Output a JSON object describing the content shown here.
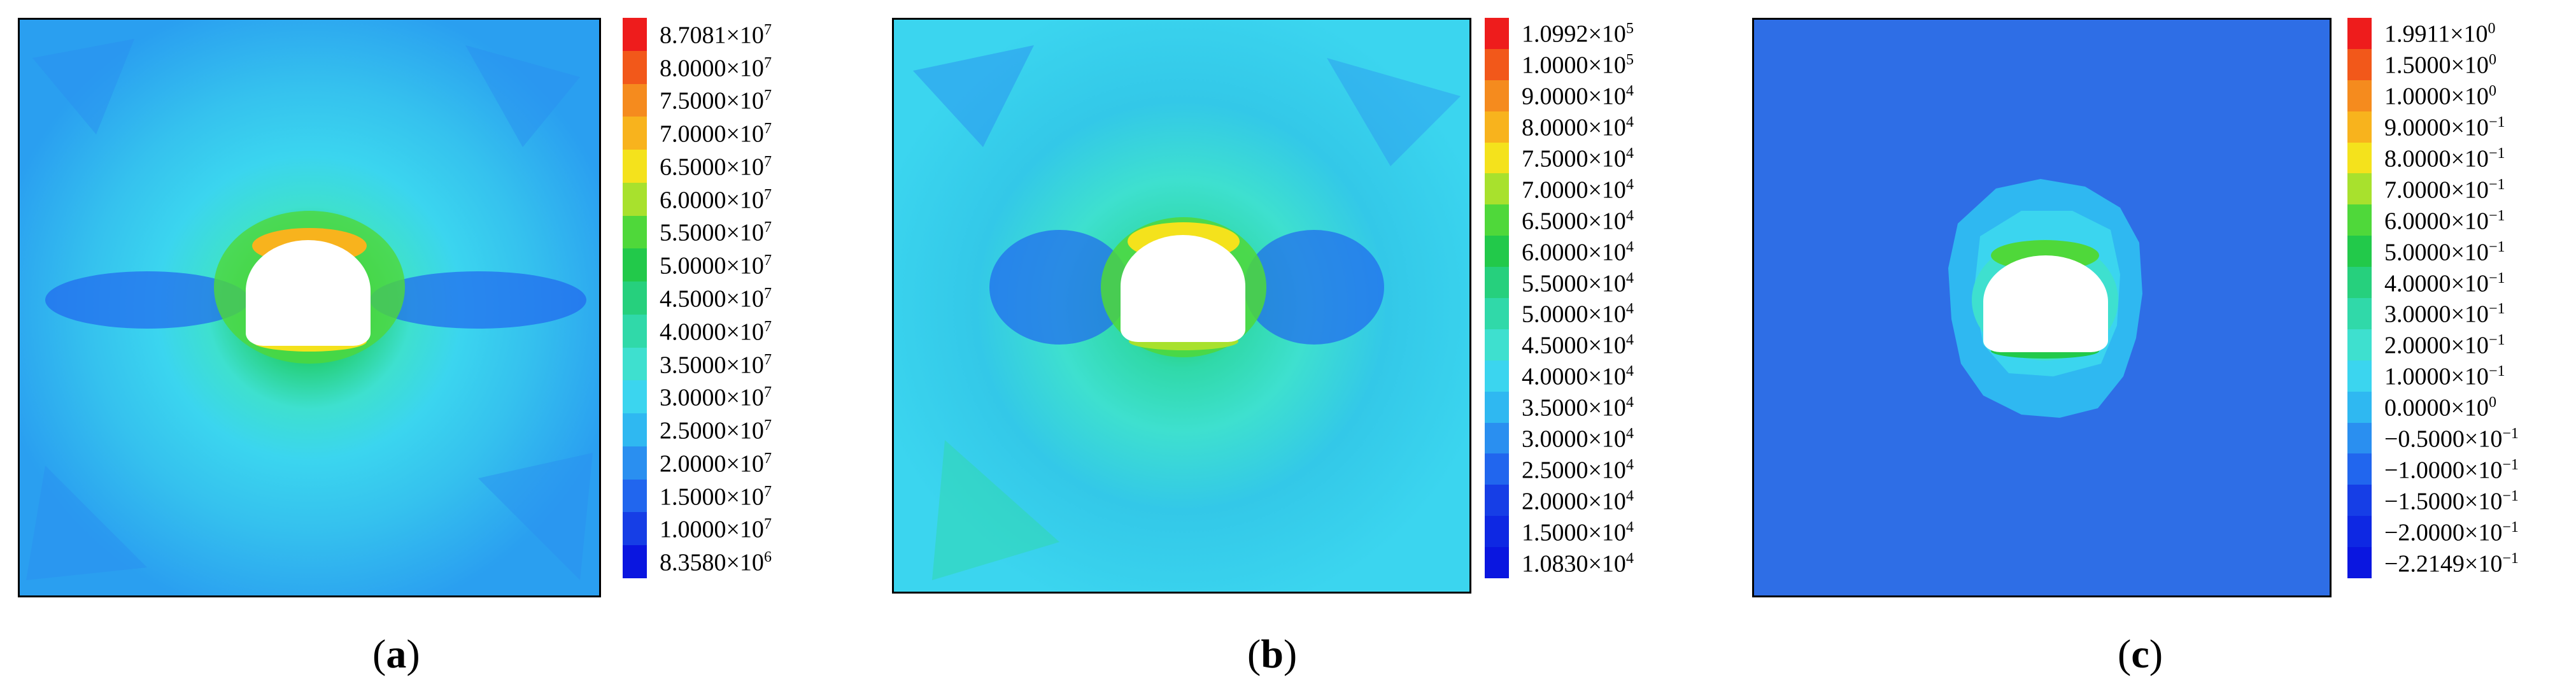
{
  "panels": [
    {
      "id": "a",
      "caption": "a",
      "background": "#35c1ee",
      "legend": [
        {
          "mantissa": "8.7081",
          "exp": "7",
          "color": "#ee1c1c"
        },
        {
          "mantissa": "8.0000",
          "exp": "7",
          "color": "#f2581a"
        },
        {
          "mantissa": "7.5000",
          "exp": "7",
          "color": "#f58b1e"
        },
        {
          "mantissa": "7.0000",
          "exp": "7",
          "color": "#f8b31d"
        },
        {
          "mantissa": "6.5000",
          "exp": "7",
          "color": "#f4e21c"
        },
        {
          "mantissa": "6.0000",
          "exp": "7",
          "color": "#a8e12d"
        },
        {
          "mantissa": "5.5000",
          "exp": "7",
          "color": "#4fd83a"
        },
        {
          "mantissa": "5.0000",
          "exp": "7",
          "color": "#22c94a"
        },
        {
          "mantissa": "4.5000",
          "exp": "7",
          "color": "#26d07d"
        },
        {
          "mantissa": "4.0000",
          "exp": "7",
          "color": "#30d9a9"
        },
        {
          "mantissa": "3.5000",
          "exp": "7",
          "color": "#3ee0cf"
        },
        {
          "mantissa": "3.0000",
          "exp": "7",
          "color": "#3bd5ef"
        },
        {
          "mantissa": "2.5000",
          "exp": "7",
          "color": "#2fb8f1"
        },
        {
          "mantissa": "2.0000",
          "exp": "7",
          "color": "#2a8ff0"
        },
        {
          "mantissa": "1.5000",
          "exp": "7",
          "color": "#2166ee"
        },
        {
          "mantissa": "1.0000",
          "exp": "7",
          "color": "#163ee6"
        },
        {
          "mantissa": "8.3580",
          "exp": "6",
          "color": "#0a16e0"
        }
      ]
    },
    {
      "id": "b",
      "caption": "b",
      "background": "#33c8e8",
      "legend": [
        {
          "mantissa": "1.0992",
          "exp": "5",
          "color": "#ee1c1c"
        },
        {
          "mantissa": "1.0000",
          "exp": "5",
          "color": "#f2581a"
        },
        {
          "mantissa": "9.0000",
          "exp": "4",
          "color": "#f58b1e"
        },
        {
          "mantissa": "8.0000",
          "exp": "4",
          "color": "#f8b31d"
        },
        {
          "mantissa": "7.5000",
          "exp": "4",
          "color": "#f4e21c"
        },
        {
          "mantissa": "7.0000",
          "exp": "4",
          "color": "#a8e12d"
        },
        {
          "mantissa": "6.5000",
          "exp": "4",
          "color": "#4fd83a"
        },
        {
          "mantissa": "6.0000",
          "exp": "4",
          "color": "#22c94a"
        },
        {
          "mantissa": "5.5000",
          "exp": "4",
          "color": "#26d07d"
        },
        {
          "mantissa": "5.0000",
          "exp": "4",
          "color": "#30d9a9"
        },
        {
          "mantissa": "4.5000",
          "exp": "4",
          "color": "#3ee0cf"
        },
        {
          "mantissa": "4.0000",
          "exp": "4",
          "color": "#3bd5ef"
        },
        {
          "mantissa": "3.5000",
          "exp": "4",
          "color": "#2fb8f1"
        },
        {
          "mantissa": "3.0000",
          "exp": "4",
          "color": "#2a8ff0"
        },
        {
          "mantissa": "2.5000",
          "exp": "4",
          "color": "#2166ee"
        },
        {
          "mantissa": "2.0000",
          "exp": "4",
          "color": "#163ee6"
        },
        {
          "mantissa": "1.5000",
          "exp": "4",
          "color": "#0e28e3"
        },
        {
          "mantissa": "1.0830",
          "exp": "4",
          "color": "#0a16e0"
        }
      ]
    },
    {
      "id": "c",
      "caption": "c",
      "background": "#2e6ee6",
      "legend": [
        {
          "mantissa": "1.9911",
          "exp": "0",
          "color": "#ee1c1c"
        },
        {
          "mantissa": "1.5000",
          "exp": "0",
          "color": "#f2581a"
        },
        {
          "mantissa": "1.0000",
          "exp": "0",
          "color": "#f58b1e"
        },
        {
          "mantissa": "9.0000",
          "exp": "−1",
          "color": "#f8b31d"
        },
        {
          "mantissa": "8.0000",
          "exp": "−1",
          "color": "#f4e21c"
        },
        {
          "mantissa": "7.0000",
          "exp": "−1",
          "color": "#a8e12d"
        },
        {
          "mantissa": "6.0000",
          "exp": "−1",
          "color": "#4fd83a"
        },
        {
          "mantissa": "5.0000",
          "exp": "−1",
          "color": "#22c94a"
        },
        {
          "mantissa": "4.0000",
          "exp": "−1",
          "color": "#26d07d"
        },
        {
          "mantissa": "3.0000",
          "exp": "−1",
          "color": "#30d9a9"
        },
        {
          "mantissa": "2.0000",
          "exp": "−1",
          "color": "#3ee0cf"
        },
        {
          "mantissa": "1.0000",
          "exp": "−1",
          "color": "#3bd5ef"
        },
        {
          "mantissa": "0.0000",
          "exp": "0",
          "color": "#2fb8f1"
        },
        {
          "mantissa": "−0.5000",
          "exp": "−1",
          "color": "#2a8ff0"
        },
        {
          "mantissa": "−1.0000",
          "exp": "−1",
          "color": "#2166ee"
        },
        {
          "mantissa": "−1.5000",
          "exp": "−1",
          "color": "#163ee6"
        },
        {
          "mantissa": "−2.0000",
          "exp": "−1",
          "color": "#0e28e3"
        },
        {
          "mantissa": "−2.2149",
          "exp": "−1",
          "color": "#0a16e0"
        }
      ]
    }
  ]
}
